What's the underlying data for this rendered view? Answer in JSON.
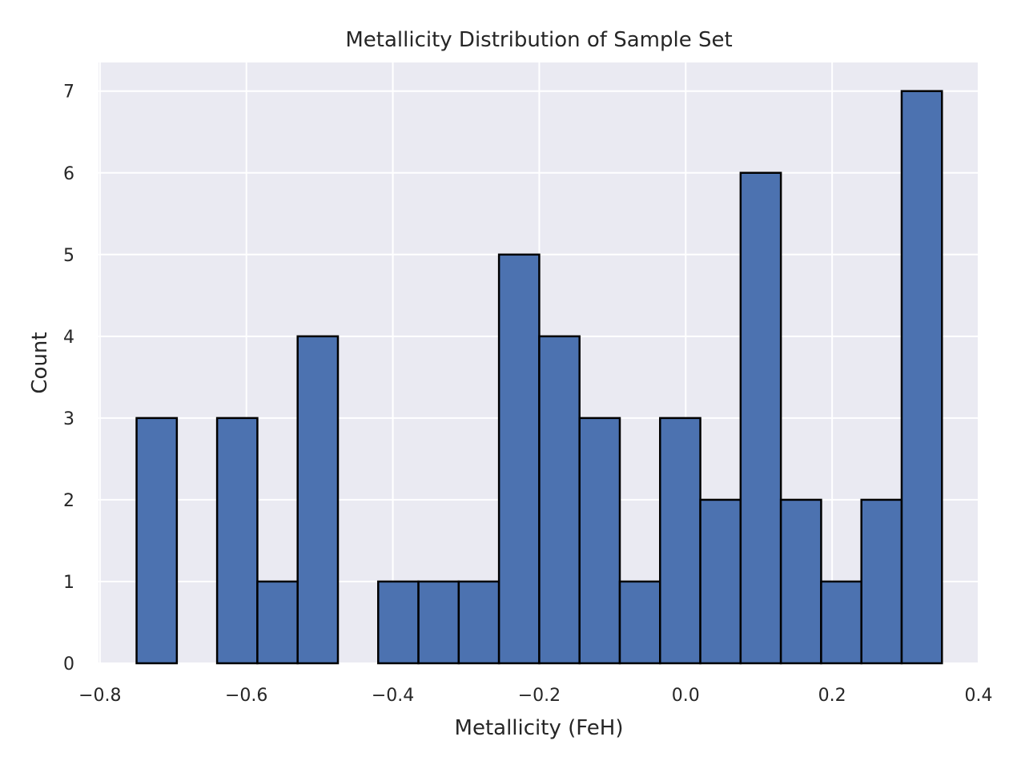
{
  "chart_data": {
    "type": "bar",
    "title": "Metallicity Distribution of Sample Set",
    "xlabel": "Metallicity (FeH)",
    "ylabel": "Count",
    "xlim": [
      -0.802,
      0.4
    ],
    "ylim": [
      0,
      7.35
    ],
    "x_ticks": [
      -0.8,
      -0.6,
      -0.4,
      -0.2,
      0.0,
      0.2,
      0.4
    ],
    "x_tick_labels": [
      "−0.8",
      "−0.6",
      "−0.4",
      "−0.2",
      "0.0",
      "0.2",
      "0.4"
    ],
    "y_ticks": [
      0,
      1,
      2,
      3,
      4,
      5,
      6,
      7
    ],
    "y_tick_labels": [
      "0",
      "1",
      "2",
      "3",
      "4",
      "5",
      "6",
      "7"
    ],
    "bins": [
      {
        "left": -0.75,
        "right": -0.695,
        "count": 3
      },
      {
        "left": -0.695,
        "right": -0.64,
        "count": 0
      },
      {
        "left": -0.64,
        "right": -0.585,
        "count": 3
      },
      {
        "left": -0.585,
        "right": -0.53,
        "count": 1
      },
      {
        "left": -0.53,
        "right": -0.475,
        "count": 4
      },
      {
        "left": -0.475,
        "right": -0.42,
        "count": 0
      },
      {
        "left": -0.42,
        "right": -0.365,
        "count": 1
      },
      {
        "left": -0.365,
        "right": -0.31,
        "count": 1
      },
      {
        "left": -0.31,
        "right": -0.255,
        "count": 1
      },
      {
        "left": -0.255,
        "right": -0.2,
        "count": 5
      },
      {
        "left": -0.2,
        "right": -0.145,
        "count": 4
      },
      {
        "left": -0.145,
        "right": -0.09,
        "count": 3
      },
      {
        "left": -0.09,
        "right": -0.035,
        "count": 1
      },
      {
        "left": -0.035,
        "right": 0.02,
        "count": 3
      },
      {
        "left": 0.02,
        "right": 0.075,
        "count": 2
      },
      {
        "left": 0.075,
        "right": 0.13,
        "count": 6
      },
      {
        "left": 0.13,
        "right": 0.185,
        "count": 2
      },
      {
        "left": 0.185,
        "right": 0.24,
        "count": 1
      },
      {
        "left": 0.24,
        "right": 0.295,
        "count": 2
      },
      {
        "left": 0.295,
        "right": 0.35,
        "count": 7
      }
    ],
    "grid": true,
    "colors": {
      "bar_fill": "#4c72b0",
      "bar_edge": "#000000",
      "plot_background": "#eaeaf2",
      "grid": "#ffffff"
    }
  }
}
